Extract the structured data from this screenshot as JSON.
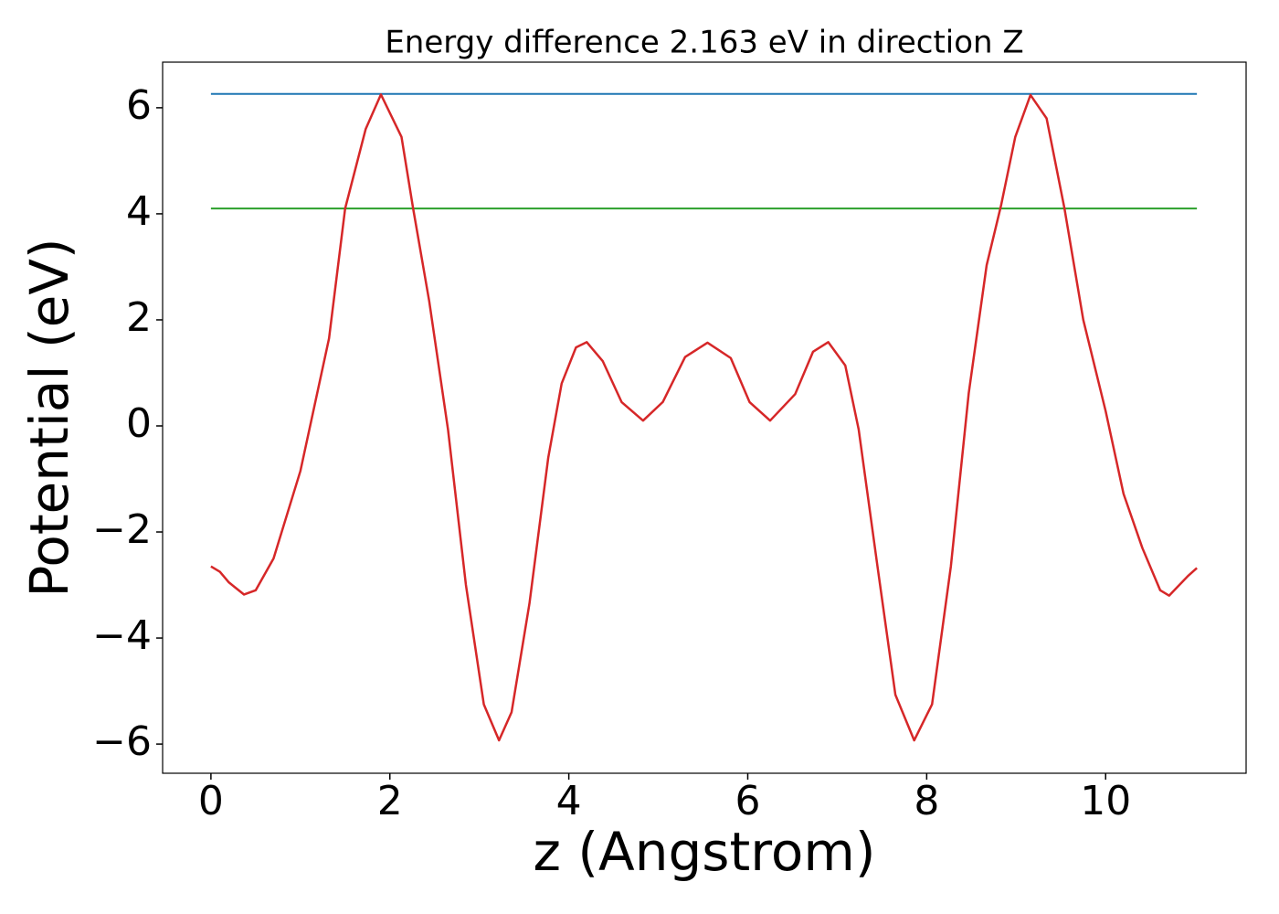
{
  "chart_data": {
    "type": "line",
    "title": "Energy difference 2.163 eV in direction Z",
    "xlabel": "z (Angstrom)",
    "ylabel": "Potential (eV)",
    "xlim": [
      -0.54,
      11.57
    ],
    "ylim": [
      -6.55,
      6.86
    ],
    "xticks": [
      0,
      2,
      4,
      6,
      8,
      10
    ],
    "yticks": [
      {
        "value": -6,
        "label": "−6"
      },
      {
        "value": -4,
        "label": "−4"
      },
      {
        "value": -2,
        "label": "−2"
      },
      0,
      2,
      4,
      6
    ],
    "series": [
      {
        "color": "#1f77b4",
        "x": [
          0,
          11.02
        ],
        "values": [
          6.26,
          6.26
        ]
      },
      {
        "color": "#2ca02c",
        "x": [
          0,
          11.02
        ],
        "values": [
          4.1,
          4.1
        ]
      },
      {
        "color": "#d62728",
        "x": [
          0,
          0.1,
          0.2,
          0.37,
          0.5,
          0.7,
          1.0,
          1.32,
          1.5,
          1.73,
          1.9,
          2.13,
          2.26,
          2.44,
          2.65,
          2.85,
          3.05,
          3.22,
          3.36,
          3.56,
          3.77,
          3.92,
          4.08,
          4.2,
          4.38,
          4.59,
          4.83,
          5.05,
          5.3,
          5.55,
          5.81,
          6.02,
          6.25,
          6.53,
          6.73,
          6.9,
          7.09,
          7.24,
          7.45,
          7.65,
          7.86,
          8.06,
          8.27,
          8.47,
          8.67,
          8.83,
          8.99,
          9.16,
          9.34,
          9.54,
          9.75,
          10.0,
          10.2,
          10.41,
          10.61,
          10.71,
          10.92,
          11.02
        ],
        "values": [
          -2.65,
          -2.75,
          -2.95,
          -3.18,
          -3.1,
          -2.5,
          -0.85,
          1.65,
          4.1,
          5.6,
          6.25,
          5.45,
          4.1,
          2.35,
          -0.07,
          -3.0,
          -5.25,
          -5.93,
          -5.4,
          -3.35,
          -0.6,
          0.8,
          1.48,
          1.58,
          1.22,
          0.45,
          0.1,
          0.45,
          1.3,
          1.57,
          1.28,
          0.45,
          0.1,
          0.6,
          1.4,
          1.58,
          1.14,
          -0.07,
          -2.65,
          -5.07,
          -5.93,
          -5.25,
          -2.65,
          0.62,
          3.03,
          4.15,
          5.45,
          6.24,
          5.8,
          4.1,
          2.0,
          0.28,
          -1.28,
          -2.3,
          -3.1,
          -3.2,
          -2.83,
          -2.68
        ]
      }
    ]
  }
}
